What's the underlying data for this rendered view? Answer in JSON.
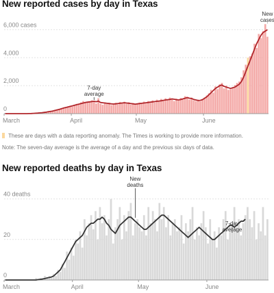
{
  "chart_data": [
    {
      "type": "bar",
      "title": "New reported cases by day in Texas",
      "ylim": [
        0,
        7000
      ],
      "yticks": [
        {
          "value": 0,
          "label": "0"
        },
        {
          "value": 2000,
          "label": "2,000"
        },
        {
          "value": 4000,
          "label": "4,000"
        },
        {
          "value": 6000,
          "label": "6,000 cases"
        }
      ],
      "xticks": [
        {
          "day": 0,
          "label": "March"
        },
        {
          "day": 31,
          "label": "April"
        },
        {
          "day": 61,
          "label": "May"
        },
        {
          "day": 92,
          "label": "June"
        }
      ],
      "start_month_day": "March 1",
      "bar_color": "#f4aaa8",
      "anomaly_color": "#fbd89d",
      "line_color": "#b0252a",
      "series": [
        {
          "values": [
            0,
            0,
            0,
            0,
            0,
            0,
            0,
            0,
            0,
            0,
            0,
            5,
            10,
            20,
            30,
            40,
            55,
            70,
            90,
            110,
            140,
            160,
            190,
            230,
            270,
            310,
            350,
            400,
            440,
            480,
            520,
            560,
            600,
            640,
            680,
            720,
            760,
            800,
            820,
            840,
            860,
            880,
            850,
            900,
            800,
            780,
            760,
            740,
            720,
            700,
            690,
            700,
            720,
            740,
            760,
            780,
            760,
            740,
            720,
            700,
            680,
            700,
            720,
            740,
            760,
            780,
            800,
            820,
            840,
            860,
            880,
            900,
            920,
            950,
            980,
            1000,
            1020,
            1050,
            1030,
            1000,
            980,
            1010,
            1050,
            1100,
            1150,
            1100,
            1080,
            1020,
            980,
            940,
            950,
            1000,
            1100,
            1200,
            1350,
            1500,
            1650,
            1800,
            1900,
            2000,
            2050,
            1950,
            1900,
            1850,
            1800,
            1850,
            1900,
            2000,
            2100,
            2300,
            2600,
            3000,
            3400,
            3800,
            4200,
            4600,
            5000,
            5300,
            5600,
            5800,
            5900,
            6000
          ]
        },
        {
          "values": [
            0,
            0,
            0,
            0,
            0,
            0,
            0,
            0,
            0,
            0,
            0,
            12,
            8,
            30,
            25,
            60,
            40,
            85,
            110,
            130,
            170,
            150,
            220,
            260,
            300,
            350,
            330,
            450,
            430,
            520,
            560,
            500,
            640,
            700,
            650,
            800,
            900,
            780,
            850,
            820,
            950,
            880,
            720,
            1100,
            700,
            640,
            810,
            690,
            780,
            610,
            720,
            780,
            650,
            840,
            720,
            850,
            700,
            820,
            640,
            760,
            700,
            730,
            790,
            700,
            860,
            720,
            900,
            770,
            950,
            800,
            1000,
            860,
            1050,
            900,
            1100,
            960,
            1150,
            1000,
            900,
            1080,
            930,
            1120,
            1000,
            1250,
            1200,
            1000,
            1150,
            950,
            900,
            1000,
            880,
            1050,
            1150,
            1300,
            1450,
            1700,
            1500,
            1950,
            1750,
            2100,
            2200,
            1800,
            2000,
            1700,
            1750,
            1900,
            2050,
            2200,
            2300,
            2600,
            3100,
            3500,
            3300,
            4100,
            4300,
            5000,
            4700,
            5700,
            5400,
            5900,
            6400,
            5500
          ]
        }
      ],
      "anomaly_days": [
        112
      ],
      "anomaly_values": [
        4000
      ],
      "annotations": [
        {
          "text_lines": [
            "7-day",
            "average"
          ],
          "day": 41
        },
        {
          "text_lines": [
            "New",
            "cases"
          ],
          "day": 121
        }
      ],
      "note": "These are days with a data reporting anomaly. The Times is working to provide more information."
    },
    {
      "type": "bar",
      "title": "New reported deaths by day in Texas",
      "ylim": [
        0,
        50
      ],
      "yticks": [
        {
          "value": 0,
          "label": "0"
        },
        {
          "value": 20,
          "label": "20"
        },
        {
          "value": 40,
          "label": "40 deaths"
        }
      ],
      "xticks": [
        {
          "day": 0,
          "label": "March"
        },
        {
          "day": 31,
          "label": "April"
        },
        {
          "day": 61,
          "label": "May"
        },
        {
          "day": 92,
          "label": "June"
        }
      ],
      "bar_color": "#d9d9d9",
      "line_color": "#333333",
      "series": [
        {
          "values": [
            0,
            0,
            0,
            0,
            0,
            0,
            0,
            0,
            0,
            0,
            0,
            0,
            0,
            0,
            0,
            0.2,
            0.3,
            0.5,
            0.7,
            1,
            1.2,
            1.5,
            2,
            3,
            4,
            5,
            7,
            9,
            11,
            13,
            15,
            17,
            19,
            20,
            21,
            22,
            24,
            26,
            27,
            28,
            28,
            29,
            30,
            30,
            31,
            30,
            28,
            27,
            25,
            24,
            23,
            25,
            27,
            28,
            29,
            30,
            31,
            31,
            30,
            29,
            28,
            27,
            26,
            25,
            25,
            26,
            27,
            28,
            29,
            30,
            31,
            32,
            32,
            31,
            30,
            29,
            28,
            27,
            26,
            25,
            24,
            23,
            22,
            21,
            22,
            23,
            24,
            25,
            26,
            25,
            24,
            23,
            22,
            21,
            20,
            20,
            21,
            22,
            23,
            24,
            25,
            26,
            27,
            27,
            26,
            27,
            28,
            29,
            29,
            30
          ]
        },
        {
          "values": [
            0,
            0,
            0,
            0,
            0,
            0,
            0,
            0,
            0,
            0,
            0,
            0,
            0,
            0,
            1,
            0,
            1,
            0,
            2,
            1,
            2,
            1,
            3,
            2,
            5,
            4,
            8,
            6,
            14,
            10,
            16,
            12,
            20,
            18,
            24,
            16,
            30,
            22,
            28,
            32,
            25,
            34,
            20,
            36,
            28,
            32,
            22,
            30,
            40,
            18,
            26,
            30,
            36,
            20,
            32,
            24,
            34,
            38,
            22,
            28,
            30,
            26,
            24,
            32,
            22,
            36,
            28,
            34,
            30,
            24,
            38,
            30,
            36,
            26,
            32,
            22,
            28,
            30,
            24,
            26,
            32,
            18,
            28,
            24,
            30,
            36,
            20,
            26,
            22,
            28,
            34,
            26,
            18,
            30,
            20,
            24,
            16,
            26,
            22,
            30,
            34,
            20,
            28,
            24,
            36,
            26,
            30,
            22,
            28,
            32,
            36,
            30,
            26,
            34,
            20,
            28,
            24,
            36,
            22,
            30
          ]
        }
      ],
      "annotations": [
        {
          "text_lines": [
            "New",
            "deaths"
          ],
          "day": 59
        },
        {
          "text_lines": [
            "7-day",
            "average"
          ],
          "day": 103
        }
      ],
      "note": "Note: The seven-day average is the average of a day and the previous six days of data."
    }
  ]
}
